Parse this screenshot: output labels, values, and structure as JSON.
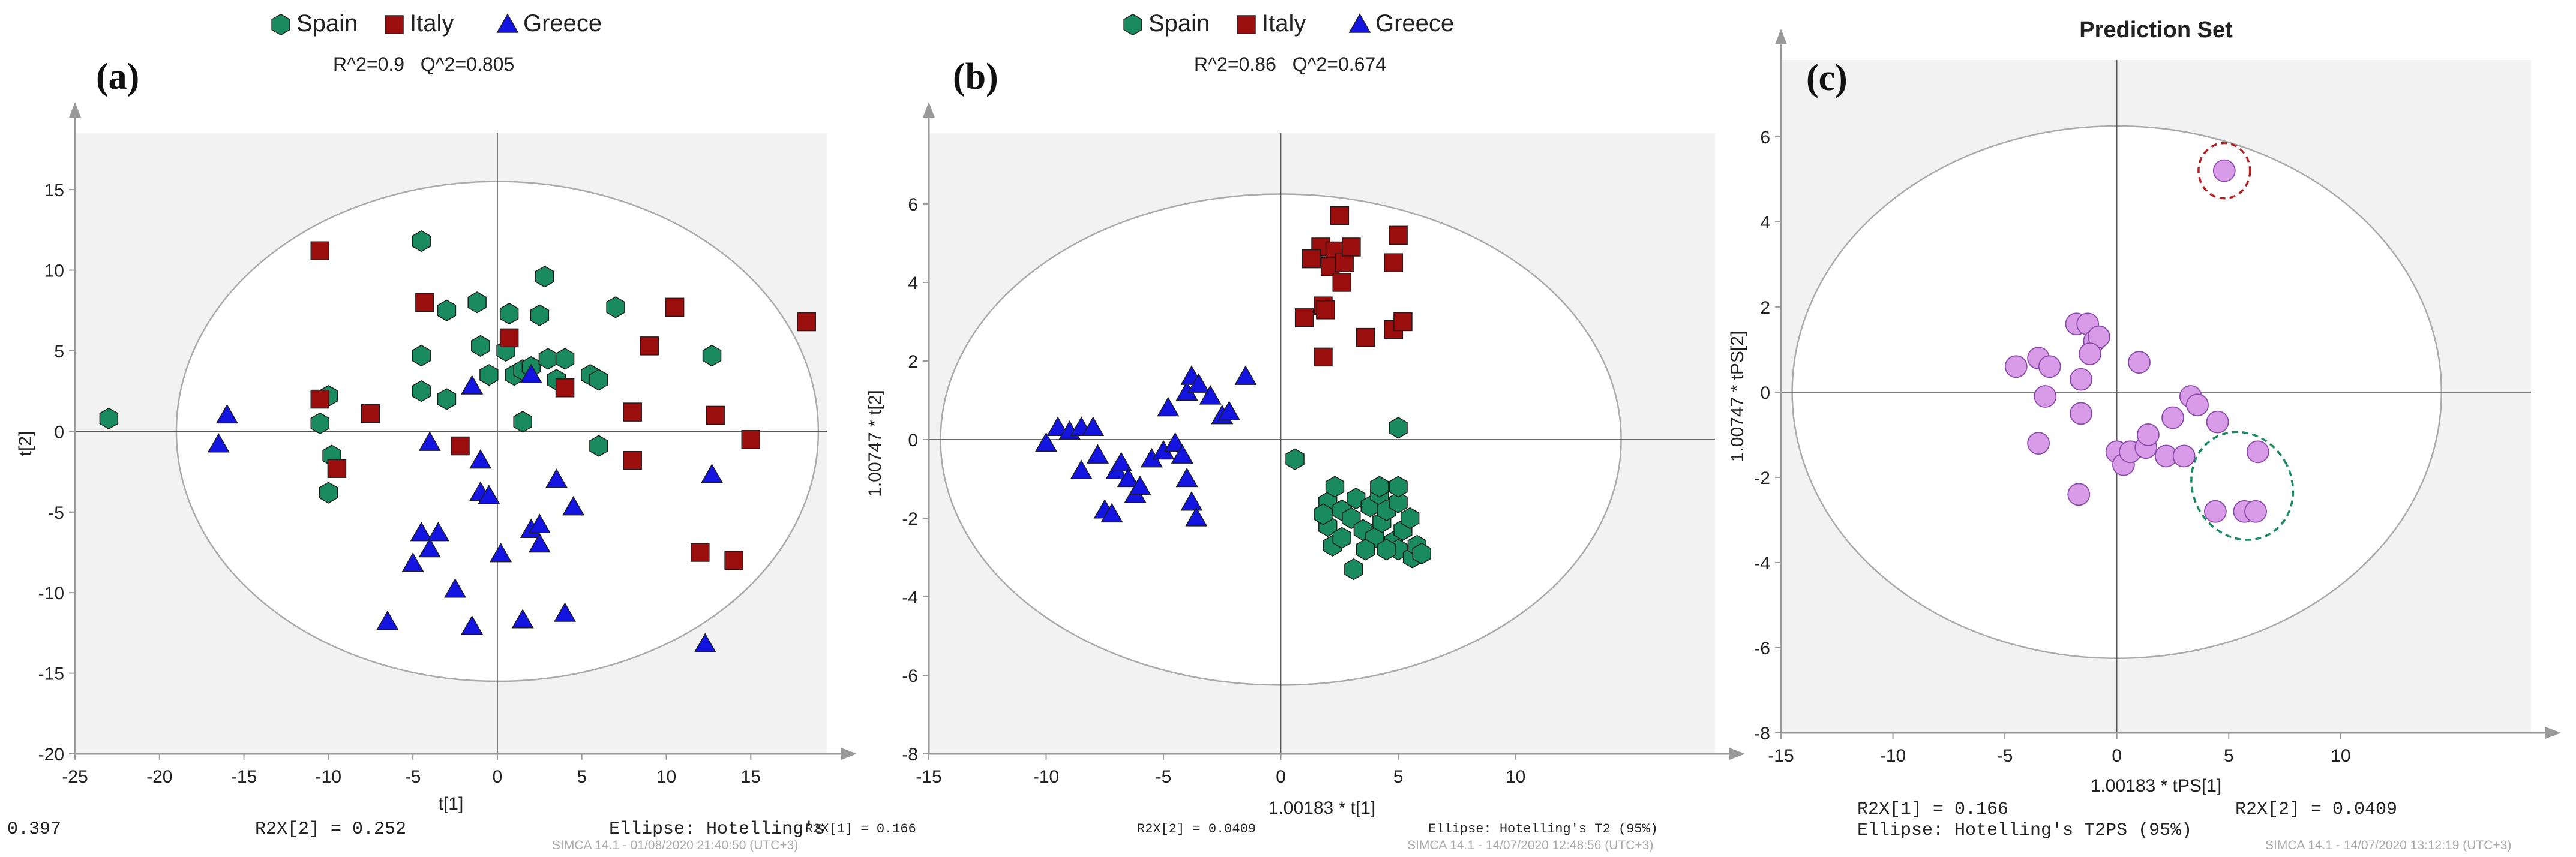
{
  "colors": {
    "spain": "#1a8a5f",
    "italy": "#9a0e0e",
    "greece": "#1414e0",
    "prediction": "#d89be8",
    "prediction_stroke": "#8a4aa8",
    "plot_bg": "#f2f2f2",
    "axis": "#999999",
    "ellipse": "#aaaaaa",
    "red_circle": "#b22222",
    "green_circle": "#1a8a5f"
  },
  "footer": {
    "left_value": "0.397",
    "panel_a_r2x2": "R2X[2] = 0.252",
    "panel_a_ellipse": "Ellipse: Hotelling's",
    "panel_a_r2x1_small": "R2X[1] = 0.166",
    "panel_a_simca": "SIMCA 14.1 - 01/08/2020 21:40:50 (UTC+3)",
    "panel_b_r2x2_small": "R2X[2] = 0.0409",
    "panel_b_ellipse": "Ellipse: Hotelling's T2 (95%)",
    "panel_b_simca": "SIMCA 14.1 - 14/07/2020 12:48:56 (UTC+3)",
    "panel_c_r2x1": "R2X[1] = 0.166",
    "panel_c_r2x2": "R2X[2] = 0.0409",
    "panel_c_ellipse": "Ellipse: Hotelling's T2PS (95%)",
    "panel_c_simca": "SIMCA 14.1 - 14/07/2020 13:12:19 (UTC+3)"
  },
  "chart_data": [
    {
      "type": "scatter",
      "panel_letter": "(a)",
      "title": "",
      "stats": "R^2=0.9   Q^2=0.805",
      "legend": [
        "Spain",
        "Italy",
        "Greece"
      ],
      "xlabel": "t[1]",
      "ylabel": "t[2]",
      "xlim": [
        -25,
        19.5
      ],
      "ylim": [
        -20,
        18.5
      ],
      "xticks": [
        -25,
        -20,
        -15,
        -10,
        -5,
        0,
        5,
        10,
        15
      ],
      "yticks": [
        -20,
        -15,
        -10,
        -5,
        0,
        5,
        10,
        15
      ],
      "ellipse": {
        "rx": 19,
        "ry": 15.5
      },
      "series": [
        {
          "name": "Spain",
          "marker": "hexagon",
          "points": [
            [
              -23,
              0.8
            ],
            [
              -10,
              2.2
            ],
            [
              -10.5,
              0.5
            ],
            [
              -9.8,
              -1.5
            ],
            [
              -10,
              -3.8
            ],
            [
              -4.5,
              11.8
            ],
            [
              -3,
              7.5
            ],
            [
              -1.2,
              8
            ],
            [
              0.7,
              7.3
            ],
            [
              2.5,
              7.2
            ],
            [
              2.8,
              9.6
            ],
            [
              7,
              7.7
            ],
            [
              12.7,
              4.7
            ],
            [
              -4.5,
              4.7
            ],
            [
              -1,
              5.3
            ],
            [
              0.5,
              5
            ],
            [
              -3,
              2
            ],
            [
              -0.5,
              3.5
            ],
            [
              1,
              3.5
            ],
            [
              1.5,
              3.8
            ],
            [
              2,
              4
            ],
            [
              3,
              4.5
            ],
            [
              3.5,
              3.2
            ],
            [
              4,
              4.5
            ],
            [
              5.5,
              3.5
            ],
            [
              6,
              3.2
            ],
            [
              6,
              -0.9
            ],
            [
              1.5,
              0.6
            ],
            [
              -4.5,
              2.5
            ]
          ]
        },
        {
          "name": "Italy",
          "marker": "square",
          "points": [
            [
              -10.5,
              11.2
            ],
            [
              -10.5,
              2
            ],
            [
              -9.5,
              -2.3
            ],
            [
              -7.5,
              1.1
            ],
            [
              -4.3,
              8
            ],
            [
              0.7,
              5.8
            ],
            [
              4,
              2.7
            ],
            [
              9,
              5.3
            ],
            [
              10.5,
              7.7
            ],
            [
              8,
              1.2
            ],
            [
              8,
              -1.8
            ],
            [
              12.9,
              1
            ],
            [
              15,
              -0.5
            ],
            [
              18.3,
              6.8
            ],
            [
              12,
              -7.5
            ],
            [
              14,
              -8
            ],
            [
              -2.2,
              -0.9
            ]
          ]
        },
        {
          "name": "Greece",
          "marker": "triangle",
          "points": [
            [
              -16,
              1
            ],
            [
              -16.5,
              -0.8
            ],
            [
              -6.5,
              -11.8
            ],
            [
              -5,
              -8.2
            ],
            [
              -4.5,
              -6.3
            ],
            [
              -4,
              -7.3
            ],
            [
              -3.5,
              -6.3
            ],
            [
              -2.5,
              -9.8
            ],
            [
              -1.5,
              -12.1
            ],
            [
              -4,
              -0.7
            ],
            [
              -1.5,
              2.8
            ],
            [
              -1,
              -1.8
            ],
            [
              -1,
              -3.8
            ],
            [
              -0.5,
              -4
            ],
            [
              1.5,
              -11.7
            ],
            [
              4,
              -11.3
            ],
            [
              2,
              -6.1
            ],
            [
              2.5,
              -5.8
            ],
            [
              2.5,
              -7
            ],
            [
              3.5,
              -3
            ],
            [
              4.5,
              -4.7
            ],
            [
              12.3,
              -13.2
            ],
            [
              12.7,
              -2.7
            ],
            [
              0.2,
              -7.6
            ],
            [
              2,
              3.5
            ]
          ]
        }
      ]
    },
    {
      "type": "scatter",
      "panel_letter": "(b)",
      "title": "",
      "stats": "R^2=0.86   Q^2=0.674",
      "legend": [
        "Spain",
        "Italy",
        "Greece"
      ],
      "xlabel": "1.00183 * t[1]",
      "ylabel": "1.00747 * t[2]",
      "xlim": [
        -15,
        18.5
      ],
      "ylim": [
        -8,
        7.8
      ],
      "xticks": [
        -15,
        -10,
        -5,
        0,
        5,
        10
      ],
      "yticks": [
        -8,
        -6,
        -4,
        -2,
        0,
        2,
        4,
        6
      ],
      "ellipse": {
        "rx": 14.5,
        "ry": 6.25
      },
      "series": [
        {
          "name": "Spain",
          "marker": "hexagon",
          "points": [
            [
              0.6,
              -0.5
            ],
            [
              5,
              0.3
            ],
            [
              2,
              -1.6
            ],
            [
              2.3,
              -1.2
            ],
            [
              2.6,
              -1.8
            ],
            [
              3,
              -2
            ],
            [
              3.2,
              -1.5
            ],
            [
              3.5,
              -2.3
            ],
            [
              3.8,
              -1.7
            ],
            [
              4,
              -2.5
            ],
            [
              4.2,
              -1.4
            ],
            [
              4.3,
              -2.1
            ],
            [
              4.5,
              -1.8
            ],
            [
              4.8,
              -2.6
            ],
            [
              5,
              -1.6
            ],
            [
              5,
              -2.8
            ],
            [
              5.2,
              -2.3
            ],
            [
              5.5,
              -2
            ],
            [
              5.6,
              -3
            ],
            [
              5.8,
              -2.7
            ],
            [
              6,
              -2.9
            ],
            [
              2,
              -2.2
            ],
            [
              2.2,
              -2.7
            ],
            [
              2.6,
              -2.5
            ],
            [
              3.1,
              -3.3
            ],
            [
              4.2,
              -1.2
            ],
            [
              4.5,
              -2.8
            ],
            [
              1.8,
              -1.9
            ],
            [
              3.6,
              -2.8
            ],
            [
              5,
              -1.2
            ]
          ]
        },
        {
          "name": "Italy",
          "marker": "square",
          "points": [
            [
              2.5,
              5.7
            ],
            [
              1.7,
              4.9
            ],
            [
              2.3,
              4.8
            ],
            [
              2.1,
              4.4
            ],
            [
              1.3,
              4.6
            ],
            [
              2.7,
              4.5
            ],
            [
              2.6,
              4
            ],
            [
              3,
              4.9
            ],
            [
              5,
              5.2
            ],
            [
              4.8,
              4.5
            ],
            [
              1.8,
              3.4
            ],
            [
              1.9,
              3.3
            ],
            [
              1,
              3.1
            ],
            [
              3.6,
              2.6
            ],
            [
              4.8,
              2.8
            ],
            [
              5.2,
              3
            ],
            [
              1.8,
              2.1
            ]
          ]
        },
        {
          "name": "Greece",
          "marker": "triangle",
          "points": [
            [
              -10,
              -0.1
            ],
            [
              -9.5,
              0.3
            ],
            [
              -9,
              0.2
            ],
            [
              -8.5,
              0.3
            ],
            [
              -8,
              0.3
            ],
            [
              -7.8,
              -0.4
            ],
            [
              -7.5,
              -1.8
            ],
            [
              -7.2,
              -1.9
            ],
            [
              -7,
              -0.8
            ],
            [
              -6.8,
              -0.6
            ],
            [
              -6.5,
              -1
            ],
            [
              -6.2,
              -1.4
            ],
            [
              -6,
              -1.2
            ],
            [
              -5.5,
              -0.5
            ],
            [
              -5,
              -0.3
            ],
            [
              -4.8,
              0.8
            ],
            [
              -4.5,
              -0.1
            ],
            [
              -4.2,
              -0.4
            ],
            [
              -4,
              -1
            ],
            [
              -3.8,
              -1.6
            ],
            [
              -3.6,
              -2
            ],
            [
              -4,
              1.2
            ],
            [
              -3.8,
              1.6
            ],
            [
              -3.5,
              1.4
            ],
            [
              -3,
              1.1
            ],
            [
              -2.5,
              0.6
            ],
            [
              -2.2,
              0.7
            ],
            [
              -1.5,
              1.6
            ],
            [
              -8.5,
              -0.8
            ]
          ]
        }
      ]
    },
    {
      "type": "scatter",
      "panel_letter": "(c)",
      "title": "Prediction Set",
      "stats": "",
      "legend": [],
      "xlabel": "1.00183 * tPS[1]",
      "ylabel": "1.00747 * tPS[2]",
      "xlim": [
        -15,
        18.5
      ],
      "ylim": [
        -8,
        7.8
      ],
      "xticks": [
        -15,
        -10,
        -5,
        0,
        5,
        10
      ],
      "yticks": [
        -8,
        -6,
        -4,
        -2,
        0,
        2,
        4,
        6
      ],
      "ellipse": {
        "rx": 14.5,
        "ry": 6.25
      },
      "highlight_circles": [
        {
          "cx": 4.8,
          "cy": 5.2,
          "rx": 1.15,
          "ry": 0.65,
          "color": "red"
        },
        {
          "cx": 5.6,
          "cy": -2.2,
          "rx": 2.2,
          "ry": 1.3,
          "angle": -30,
          "color": "green"
        }
      ],
      "series": [
        {
          "name": "Prediction",
          "marker": "circle",
          "points": [
            [
              4.8,
              5.2
            ],
            [
              -4.5,
              0.6
            ],
            [
              -3.5,
              0.8
            ],
            [
              -3,
              0.6
            ],
            [
              -3.2,
              -0.1
            ],
            [
              -3.5,
              -1.2
            ],
            [
              -1.8,
              1.6
            ],
            [
              -1.3,
              1.6
            ],
            [
              -1,
              1.2
            ],
            [
              -0.8,
              1.3
            ],
            [
              -1.2,
              0.9
            ],
            [
              -1.6,
              0.3
            ],
            [
              -1.6,
              -0.5
            ],
            [
              -1.7,
              -2.4
            ],
            [
              1,
              0.7
            ],
            [
              0,
              -1.4
            ],
            [
              0.3,
              -1.7
            ],
            [
              0.6,
              -1.4
            ],
            [
              1.3,
              -1.3
            ],
            [
              1.4,
              -1
            ],
            [
              2.2,
              -1.5
            ],
            [
              2.5,
              -0.6
            ],
            [
              3,
              -1.5
            ],
            [
              3.3,
              -0.1
            ],
            [
              3.6,
              -0.3
            ],
            [
              4.5,
              -0.7
            ],
            [
              4.4,
              -2.8
            ],
            [
              5.7,
              -2.8
            ],
            [
              6.2,
              -2.8
            ],
            [
              6.3,
              -1.4
            ]
          ]
        }
      ]
    }
  ]
}
